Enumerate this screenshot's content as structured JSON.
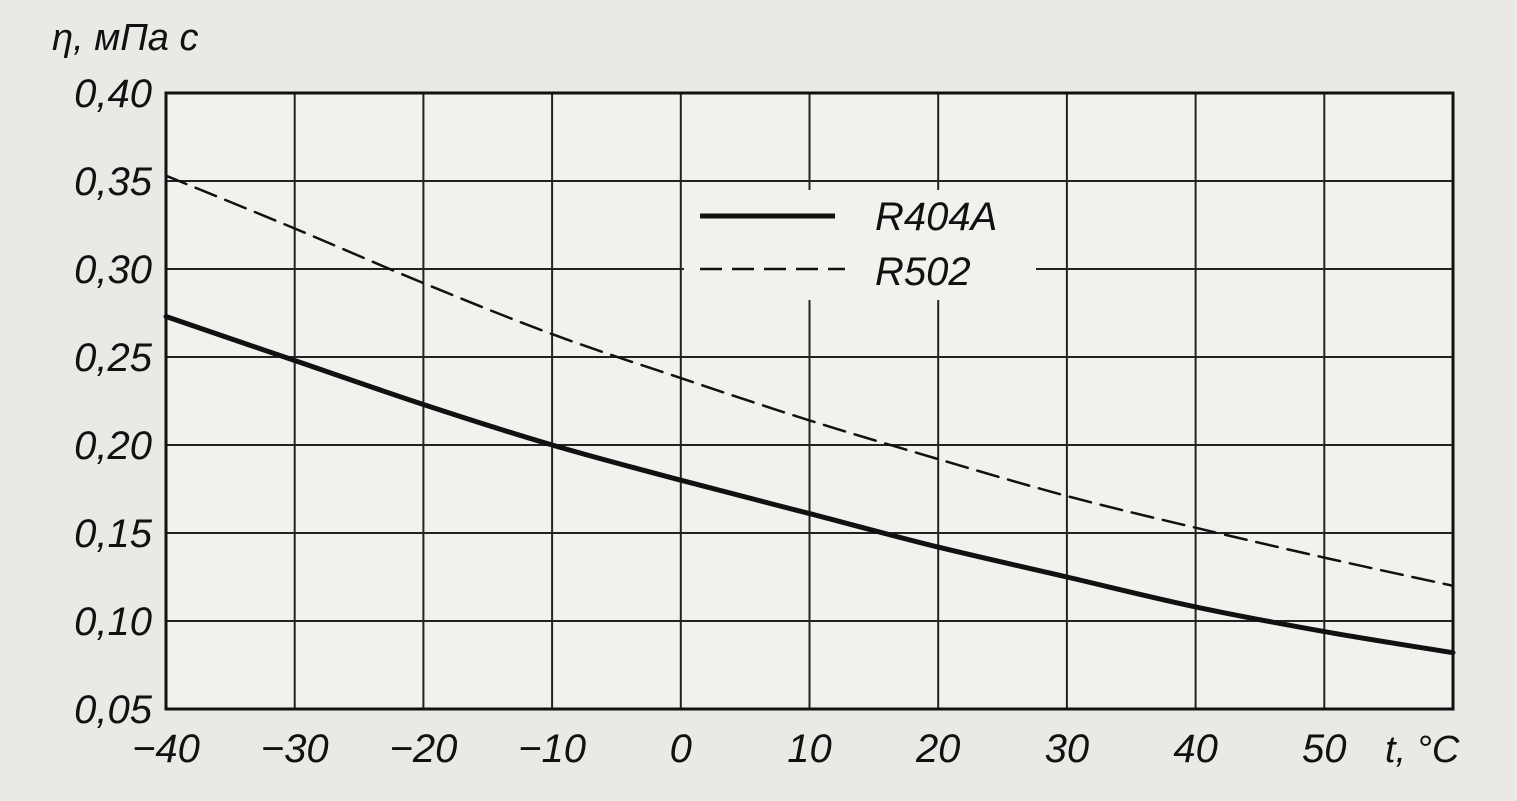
{
  "chart_data": {
    "type": "line",
    "title": "",
    "xlabel": "t, °C",
    "ylabel": "η, мПа с",
    "xlim": [
      -40,
      60
    ],
    "ylim": [
      0.05,
      0.4
    ],
    "x_ticks": [
      -40,
      -30,
      -20,
      -10,
      0,
      10,
      20,
      30,
      40,
      50
    ],
    "x_tick_labels": [
      "−40",
      "−30",
      "−20",
      "−10",
      "0",
      "10",
      "20",
      "30",
      "40",
      "50"
    ],
    "y_ticks": [
      0.05,
      0.1,
      0.15,
      0.2,
      0.25,
      0.3,
      0.35,
      0.4
    ],
    "y_tick_labels": [
      "0,05",
      "0,10",
      "0,15",
      "0,20",
      "0,25",
      "0,30",
      "0,35",
      "0,40"
    ],
    "grid": true,
    "legend_position": "top-center",
    "series": [
      {
        "name": "R404A",
        "style": "solid",
        "color": "#111111",
        "x": [
          -40,
          -30,
          -20,
          -10,
          0,
          10,
          20,
          30,
          40,
          50,
          60
        ],
        "y": [
          0.273,
          0.248,
          0.223,
          0.2,
          0.18,
          0.161,
          0.142,
          0.125,
          0.108,
          0.094,
          0.082
        ]
      },
      {
        "name": "R502",
        "style": "dashed",
        "color": "#111111",
        "x": [
          -40,
          -30,
          -20,
          -10,
          0,
          10,
          20,
          30,
          40,
          50,
          60
        ],
        "y": [
          0.353,
          0.323,
          0.292,
          0.263,
          0.238,
          0.214,
          0.192,
          0.171,
          0.153,
          0.136,
          0.12
        ]
      }
    ]
  }
}
